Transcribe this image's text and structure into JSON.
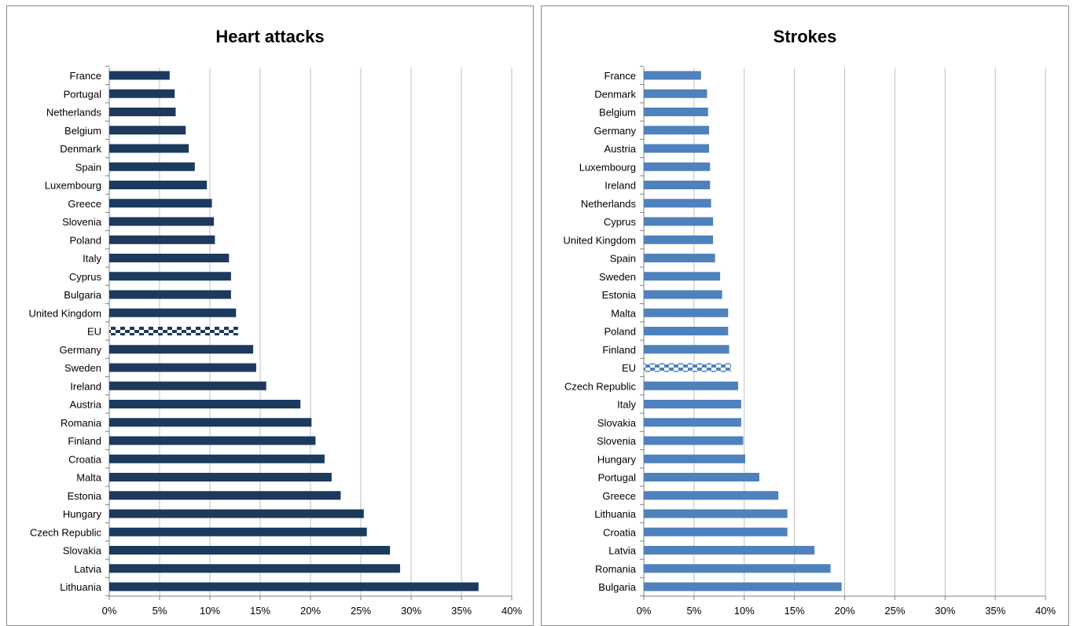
{
  "chart_data": [
    {
      "type": "bar",
      "title": "Heart attacks",
      "orientation": "horizontal",
      "categories": [
        "France",
        "Portugal",
        "Netherlands",
        "Belgium",
        "Denmark",
        "Spain",
        "Luxembourg",
        "Greece",
        "Slovenia",
        "Poland",
        "Italy",
        "Cyprus",
        "Bulgaria",
        "United Kingdom",
        "EU",
        "Germany",
        "Sweden",
        "Ireland",
        "Austria",
        "Romania",
        "Finland",
        "Croatia",
        "Malta",
        "Estonia",
        "Hungary",
        "Czech Republic",
        "Slovakia",
        "Latvia",
        "Lithuania"
      ],
      "values": [
        6.0,
        6.5,
        6.6,
        7.6,
        7.9,
        8.5,
        9.7,
        10.2,
        10.4,
        10.5,
        11.9,
        12.1,
        12.1,
        12.6,
        12.8,
        14.3,
        14.6,
        15.6,
        19.0,
        20.1,
        20.5,
        21.4,
        22.1,
        23.0,
        25.3,
        25.6,
        27.9,
        28.9,
        36.7
      ],
      "highlight": "EU",
      "xlim": [
        0,
        40
      ],
      "xticks": [
        "0%",
        "5%",
        "10%",
        "15%",
        "20%",
        "25%",
        "30%",
        "35%",
        "40%"
      ],
      "grid": true,
      "color": "#1b3a5e"
    },
    {
      "type": "bar",
      "title": "Strokes",
      "orientation": "horizontal",
      "categories": [
        "France",
        "Denmark",
        "Belgium",
        "Germany",
        "Austria",
        "Luxembourg",
        "Ireland",
        "Netherlands",
        "Cyprus",
        "United Kingdom",
        "Spain",
        "Sweden",
        "Estonia",
        "Malta",
        "Poland",
        "Finland",
        "EU",
        "Czech Republic",
        "Italy",
        "Slovakia",
        "Slovenia",
        "Hungary",
        "Portugal",
        "Greece",
        "Lithuania",
        "Croatia",
        "Latvia",
        "Romania",
        "Bulgaria"
      ],
      "values": [
        5.7,
        6.3,
        6.4,
        6.5,
        6.5,
        6.6,
        6.6,
        6.7,
        6.9,
        6.9,
        7.1,
        7.6,
        7.8,
        8.4,
        8.4,
        8.5,
        8.7,
        9.4,
        9.7,
        9.7,
        9.9,
        10.1,
        11.5,
        13.4,
        14.3,
        14.3,
        17.0,
        18.6,
        19.7
      ],
      "highlight": "EU",
      "xlim": [
        0,
        40
      ],
      "xticks": [
        "0%",
        "5%",
        "10%",
        "15%",
        "20%",
        "25%",
        "30%",
        "35%",
        "40%"
      ],
      "grid": true,
      "color": "#4f81bd"
    }
  ]
}
